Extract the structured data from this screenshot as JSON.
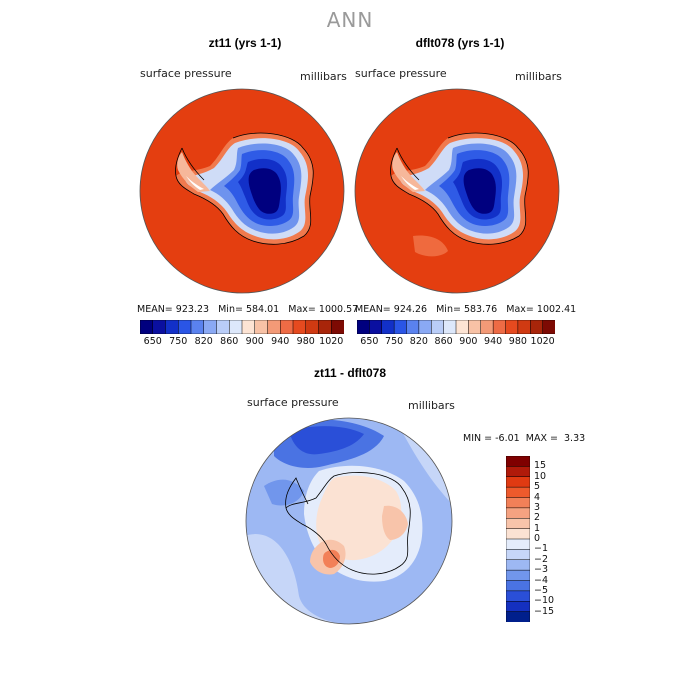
{
  "page": {
    "title": "ANN"
  },
  "panels": [
    {
      "title": "zt11 (yrs 1-1)",
      "variable": "surface pressure",
      "units": "millibars",
      "stats": {
        "mean_label": "MEAN=",
        "mean": "923.23",
        "min_label": "Min=",
        "min": "584.01",
        "max_label": "Max=",
        "max": "1000.57"
      }
    },
    {
      "title": "dflt078 (yrs 1-1)",
      "variable": "surface pressure",
      "units": "millibars",
      "stats": {
        "mean_label": "MEAN=",
        "mean": "924.26",
        "min_label": "Min=",
        "min": "583.76",
        "max_label": "Max=",
        "max": "1002.41"
      }
    }
  ],
  "diff_panel": {
    "title": "zt11 - dflt078",
    "variable": "surface pressure",
    "units": "millibars",
    "min_label": "MIN =",
    "min": "-6.01",
    "max_label": "MAX =",
    "max": "3.33"
  },
  "chart_data": [
    {
      "type": "heatmap",
      "title": "zt11 (yrs 1-1)",
      "projection": "south polar stereographic",
      "variable": "surface pressure",
      "units": "millibars",
      "mean": 923.23,
      "min": 584.01,
      "max": 1000.57,
      "colorbar": {
        "tick_labels": [
          "650",
          "750",
          "820",
          "860",
          "900",
          "940",
          "980",
          "1020"
        ],
        "colors": [
          "#00007f",
          "#0a0fa0",
          "#1230c8",
          "#2a55e6",
          "#5a82ef",
          "#8aa9f4",
          "#b9cdf8",
          "#dde8fb",
          "#fde4d4",
          "#f8c2a6",
          "#f39a77",
          "#ee6b45",
          "#e64a1f",
          "#d03a12",
          "#a8250a",
          "#7d0a03"
        ]
      }
    },
    {
      "type": "heatmap",
      "title": "dflt078 (yrs 1-1)",
      "projection": "south polar stereographic",
      "variable": "surface pressure",
      "units": "millibars",
      "mean": 924.26,
      "min": 583.76,
      "max": 1002.41,
      "colorbar": {
        "tick_labels": [
          "650",
          "750",
          "820",
          "860",
          "900",
          "940",
          "980",
          "1020"
        ],
        "colors": [
          "#00007f",
          "#0a0fa0",
          "#1230c8",
          "#2a55e6",
          "#5a82ef",
          "#8aa9f4",
          "#b9cdf8",
          "#dde8fb",
          "#fde4d4",
          "#f8c2a6",
          "#f39a77",
          "#ee6b45",
          "#e64a1f",
          "#d03a12",
          "#a8250a",
          "#7d0a03"
        ]
      }
    },
    {
      "type": "heatmap",
      "title": "zt11 - dflt078",
      "projection": "south polar stereographic",
      "variable": "surface pressure",
      "units": "millibars",
      "min": -6.01,
      "max": 3.33,
      "colorbar": {
        "orientation": "vertical",
        "tick_labels": [
          "15",
          "10",
          "5",
          "4",
          "3",
          "2",
          "1",
          "0",
          "−1",
          "−2",
          "−3",
          "−4",
          "−5",
          "−10",
          "−15"
        ],
        "colors": [
          "#7f0000",
          "#b01a0a",
          "#e03a12",
          "#ee5a2c",
          "#f28058",
          "#f5a281",
          "#f8c4aa",
          "#fbe2d3",
          "#e4ecfb",
          "#c6d6f8",
          "#9db8f3",
          "#7196ec",
          "#4a73e3",
          "#2a4fd8",
          "#1430c0",
          "#001f8c"
        ]
      }
    }
  ]
}
